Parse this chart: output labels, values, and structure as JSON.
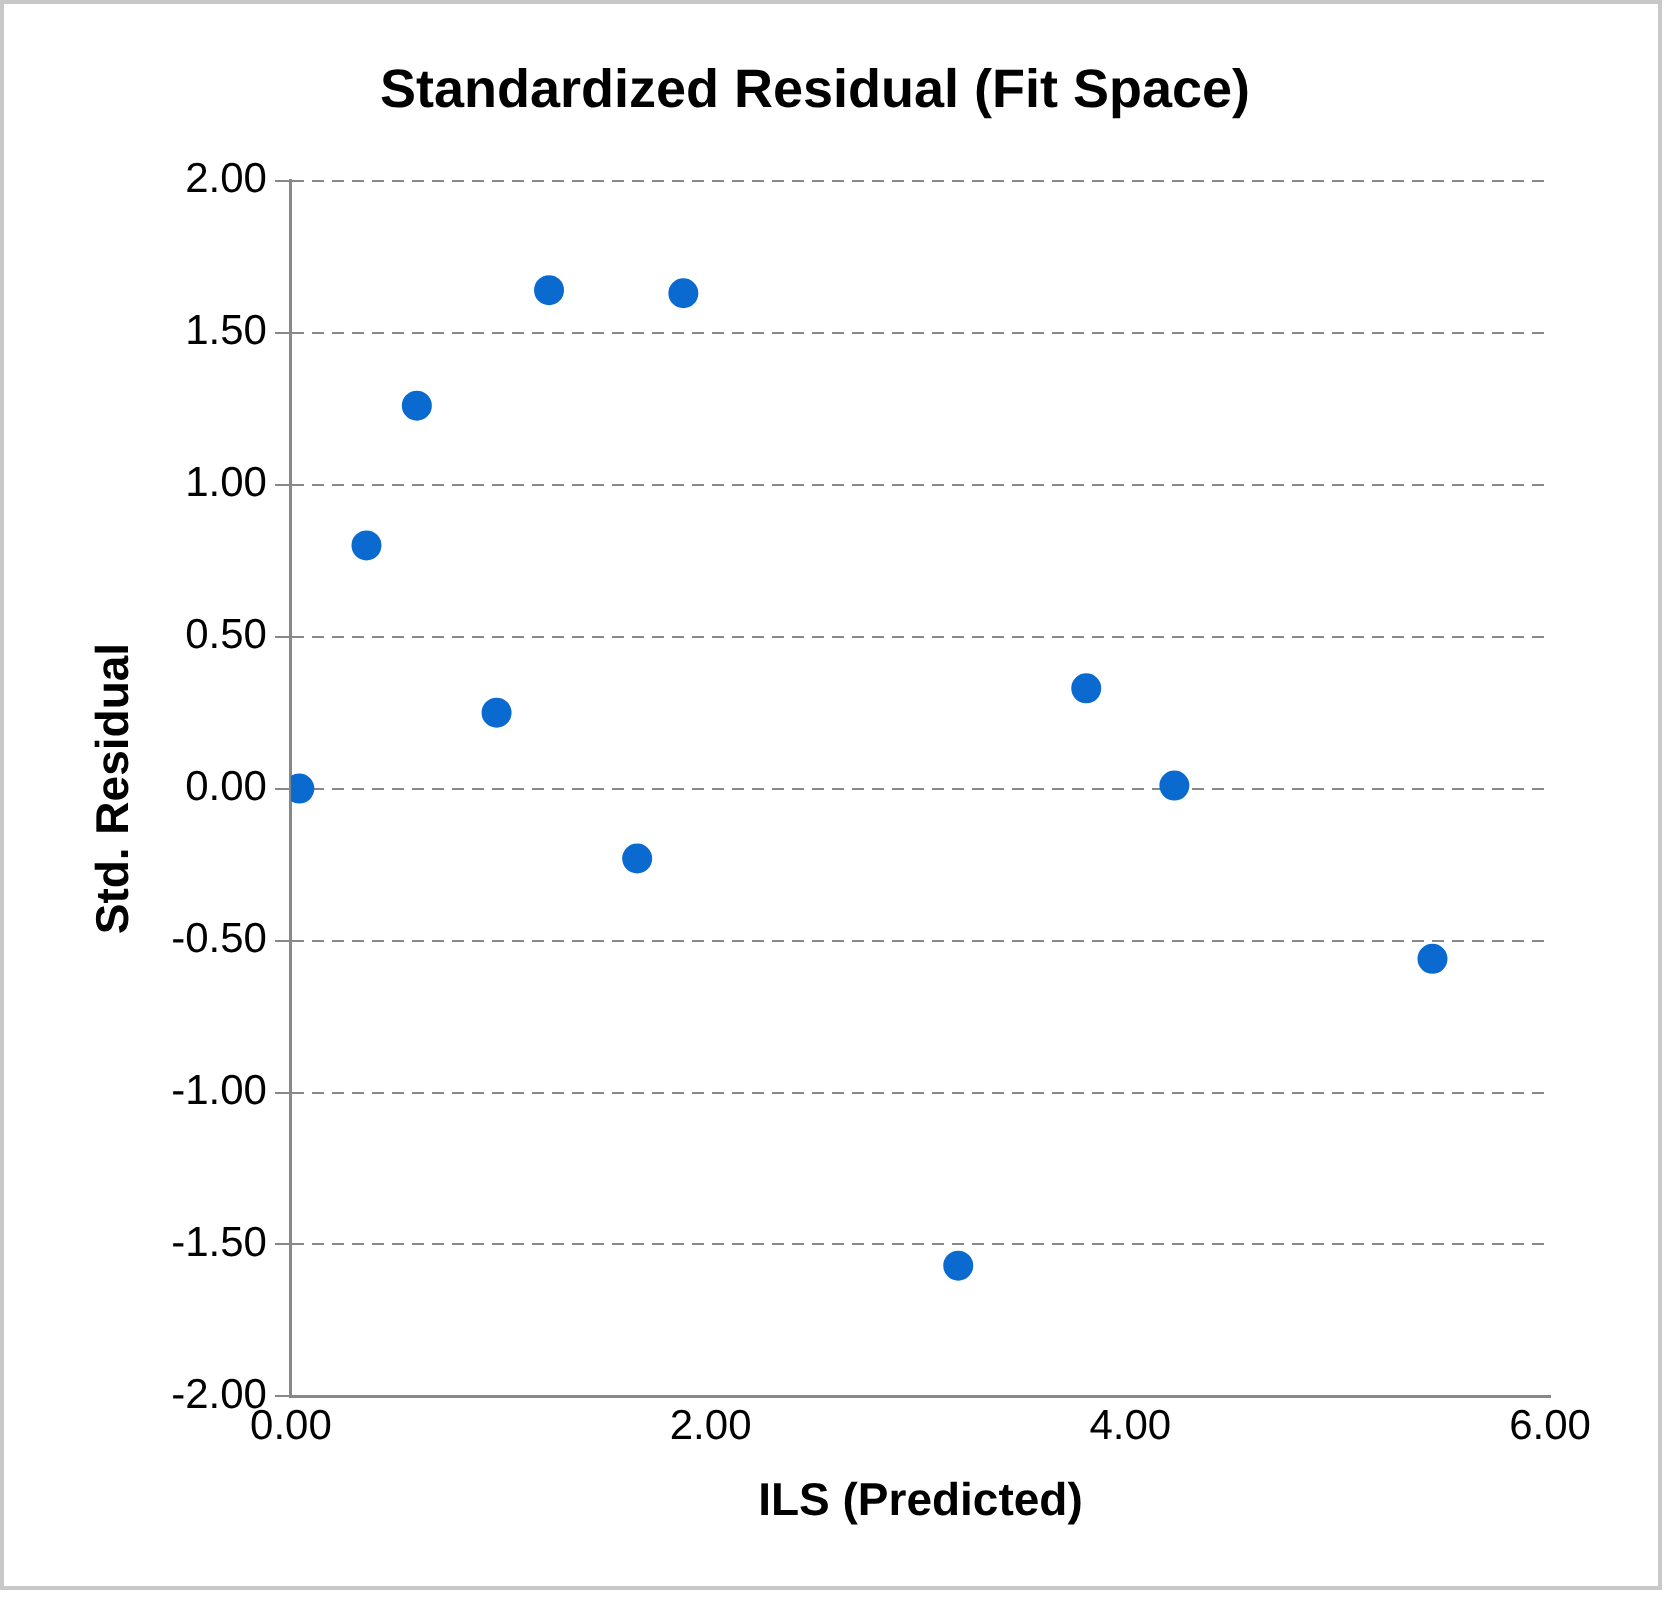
{
  "chart_data": {
    "type": "scatter",
    "title": "Standardized Residual (Fit Space)",
    "xlabel": "ILS (Predicted)",
    "ylabel": "Std. Residual",
    "x": [
      0.04,
      0.36,
      0.6,
      0.98,
      1.23,
      1.65,
      1.87,
      3.18,
      3.79,
      4.21,
      5.44
    ],
    "values": [
      0.0,
      0.8,
      1.26,
      0.25,
      1.64,
      -0.23,
      1.63,
      -1.57,
      0.33,
      0.01,
      -0.56
    ],
    "color": "#0a6ad0",
    "marker": "circle",
    "xlim": [
      0,
      6
    ],
    "xticks": [
      {
        "value": 0,
        "label": "0.00"
      },
      {
        "value": 2,
        "label": "2.00"
      },
      {
        "value": 4,
        "label": "4.00"
      },
      {
        "value": 6,
        "label": "6.00"
      }
    ],
    "ylim": [
      -2,
      2
    ],
    "yticks": [
      {
        "value": -2,
        "label": "-2.00"
      },
      {
        "value": -1.5,
        "label": "-1.50"
      },
      {
        "value": -1,
        "label": "-1.00"
      },
      {
        "value": -0.5,
        "label": "-0.50"
      },
      {
        "value": 0,
        "label": "0.00"
      },
      {
        "value": 0.5,
        "label": "0.50"
      },
      {
        "value": 1,
        "label": "1.00"
      },
      {
        "value": 1.5,
        "label": "1.50"
      },
      {
        "value": 2,
        "label": "2.00"
      }
    ],
    "grid": "y",
    "legend": false
  }
}
